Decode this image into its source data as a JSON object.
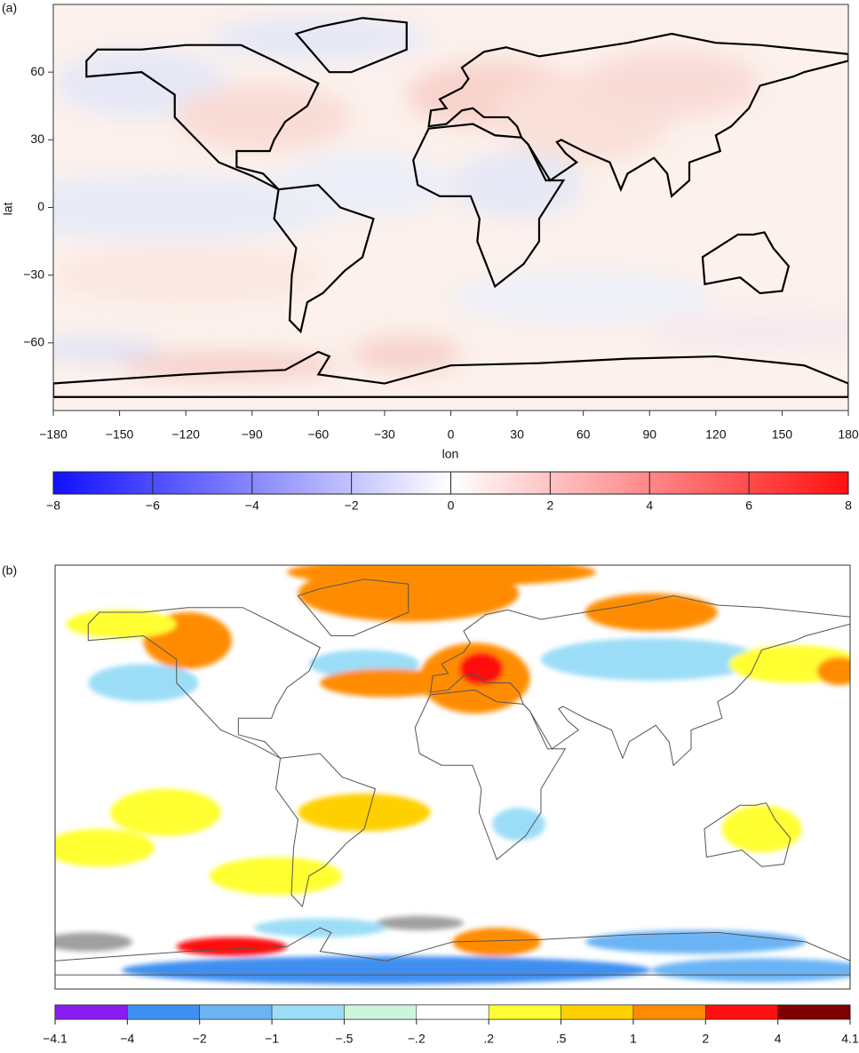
{
  "chart_data": [
    {
      "type": "map",
      "panel_label": "(a)",
      "xlabel": "lon",
      "ylabel": "lat",
      "xlim": [
        -180,
        180
      ],
      "ylim": [
        -90,
        90
      ],
      "xticks": [
        {
          "value": -180,
          "label": "−180"
        },
        {
          "value": -150,
          "label": "−150"
        },
        {
          "value": -120,
          "label": "−120"
        },
        {
          "value": -90,
          "label": "−90"
        },
        {
          "value": -60,
          "label": "−60"
        },
        {
          "value": -30,
          "label": "−30"
        },
        0,
        30,
        60,
        90,
        120,
        150,
        180
      ],
      "yticks": [
        {
          "value": -60,
          "label": "−60"
        },
        {
          "value": -30,
          "label": "−30"
        },
        0,
        30,
        60
      ],
      "colorbar": {
        "lim": [
          -8,
          8
        ],
        "colors": [
          "#1010ff",
          "#ffffff",
          "#ff1010"
        ],
        "ticks": [
          {
            "value": -8,
            "label": "−8"
          },
          {
            "value": -6,
            "label": "−6"
          },
          {
            "value": -4,
            "label": "−4"
          },
          {
            "value": -2,
            "label": "−2"
          },
          0,
          2,
          4,
          6,
          8
        ]
      }
    },
    {
      "type": "map",
      "panel_label": "(b)",
      "colorbar": {
        "colors": [
          "#8a1cf0",
          "#3f8ff0",
          "#6ab4f5",
          "#9bddf7",
          "#cdf5dc",
          "#ffffff",
          "#ffff33",
          "#ffd000",
          "#ff8c00",
          "#ff1010",
          "#7f0000"
        ],
        "ticks": [
          {
            "value": -4.1,
            "label": "−4.1"
          },
          {
            "value": -4,
            "label": "−4"
          },
          {
            "value": -2,
            "label": "−2"
          },
          {
            "value": -1,
            "label": "−1"
          },
          {
            "value": -0.5,
            "label": "−.5"
          },
          {
            "value": -0.2,
            "label": "−.2"
          },
          {
            "value": 0.2,
            "label": ".2"
          },
          {
            "value": 0.5,
            "label": ".5"
          },
          1,
          2,
          4,
          4.1
        ]
      }
    }
  ]
}
